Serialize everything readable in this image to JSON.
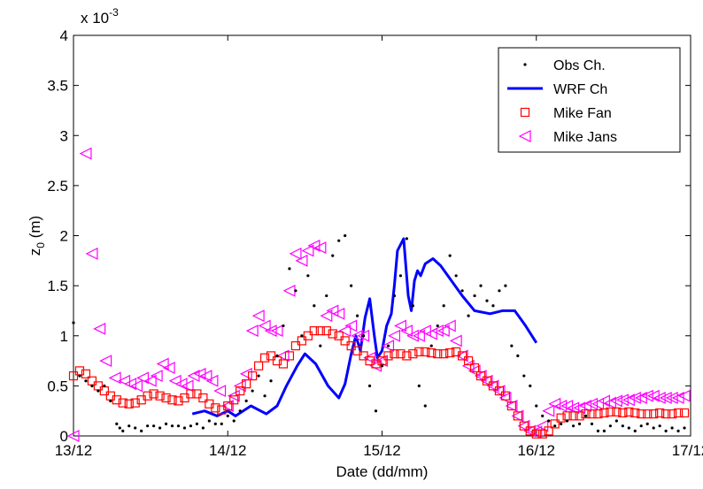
{
  "chart_data": {
    "type": "scatter",
    "title": "",
    "xlabel": "Date (dd/mm)",
    "ylabel": "z",
    "ylabel_subscript": "0",
    "ylabel_suffix": " (m)",
    "y_multiplier_label": "x 10",
    "y_multiplier_exponent": "-3",
    "x_ticks": [
      "13/12",
      "14/12",
      "15/12",
      "16/12",
      "17/12"
    ],
    "y_ticks": [
      "0",
      "0.5",
      "1",
      "1.5",
      "2",
      "2.5",
      "3",
      "3.5",
      "4"
    ],
    "xlim": [
      0,
      4
    ],
    "ylim": [
      0,
      4
    ],
    "legend_position": "top-right",
    "grid": false,
    "series": [
      {
        "name": "Obs Ch.",
        "style": "dots",
        "color": "#000000",
        "x": [
          0.0,
          0.04,
          0.08,
          0.12,
          0.16,
          0.2,
          0.24,
          0.28,
          0.3,
          0.32,
          0.36,
          0.4,
          0.44,
          0.48,
          0.52,
          0.56,
          0.6,
          0.64,
          0.68,
          0.72,
          0.76,
          0.8,
          0.84,
          0.88,
          0.92,
          0.96,
          1.0,
          1.04,
          1.08,
          1.12,
          1.16,
          1.2,
          1.24,
          1.28,
          1.32,
          1.36,
          1.4,
          1.44,
          1.48,
          1.52,
          1.56,
          1.6,
          1.64,
          1.68,
          1.72,
          1.76,
          1.8,
          1.84,
          1.88,
          1.92,
          1.96,
          2.0,
          2.04,
          2.08,
          2.12,
          2.16,
          2.2,
          2.24,
          2.28,
          2.32,
          2.36,
          2.4,
          2.44,
          2.48,
          2.52,
          2.56,
          2.6,
          2.64,
          2.68,
          2.72,
          2.76,
          2.8,
          2.84,
          2.88,
          2.92,
          2.96,
          3.0,
          3.04,
          3.08,
          3.12,
          3.16,
          3.2,
          3.24,
          3.28,
          3.32,
          3.36,
          3.4,
          3.44,
          3.48,
          3.52,
          3.56,
          3.6,
          3.64,
          3.68,
          3.72,
          3.76,
          3.8,
          3.84,
          3.88,
          3.92,
          3.96
        ],
        "y": [
          1.13,
          0.6,
          0.55,
          0.5,
          0.45,
          0.5,
          0.35,
          0.12,
          0.08,
          0.05,
          0.1,
          0.08,
          0.05,
          0.1,
          0.1,
          0.08,
          0.12,
          0.1,
          0.1,
          0.08,
          0.1,
          0.12,
          0.08,
          0.15,
          0.12,
          0.12,
          0.2,
          0.15,
          0.25,
          0.35,
          0.45,
          0.6,
          0.4,
          0.55,
          0.8,
          1.1,
          1.67,
          1.45,
          1.0,
          1.6,
          1.3,
          0.9,
          1.4,
          1.8,
          1.95,
          2.0,
          1.5,
          1.2,
          1.0,
          0.5,
          0.25,
          0.7,
          0.9,
          1.4,
          1.6,
          1.97,
          1.3,
          0.5,
          0.3,
          0.9,
          1.1,
          1.3,
          1.8,
          1.6,
          1.45,
          1.2,
          1.4,
          1.5,
          1.35,
          1.3,
          1.45,
          1.5,
          0.9,
          0.8,
          0.6,
          0.5,
          0.3,
          0.2,
          0.15,
          0.1,
          0.12,
          0.15,
          0.1,
          0.12,
          0.2,
          0.12,
          0.05,
          0.05,
          0.1,
          0.15,
          0.1,
          0.08,
          0.05,
          0.1,
          0.12,
          0.08,
          0.1,
          0.05,
          0.08,
          0.05,
          0.08
        ]
      },
      {
        "name": "WRF Ch",
        "style": "line",
        "color": "#0000ff",
        "x": [
          0.77,
          0.85,
          0.93,
          1.0,
          1.05,
          1.15,
          1.25,
          1.32,
          1.38,
          1.45,
          1.5,
          1.57,
          1.65,
          1.72,
          1.76,
          1.8,
          1.83,
          1.86,
          1.89,
          1.92,
          1.95,
          1.97,
          2.0,
          2.03,
          2.06,
          2.08,
          2.1,
          2.14,
          2.17,
          2.19,
          2.21,
          2.23,
          2.25,
          2.28,
          2.33,
          2.38,
          2.45,
          2.52,
          2.6,
          2.7,
          2.78,
          2.86,
          2.93,
          3.0
        ],
        "y": [
          0.22,
          0.25,
          0.2,
          0.25,
          0.2,
          0.3,
          0.22,
          0.3,
          0.5,
          0.7,
          0.82,
          0.72,
          0.5,
          0.38,
          0.52,
          0.82,
          1.0,
          0.85,
          1.18,
          1.37,
          1.0,
          0.78,
          0.85,
          1.1,
          1.22,
          1.5,
          1.85,
          1.97,
          1.4,
          1.25,
          1.55,
          1.65,
          1.6,
          1.72,
          1.77,
          1.7,
          1.55,
          1.4,
          1.25,
          1.22,
          1.25,
          1.25,
          1.1,
          0.93
        ]
      },
      {
        "name": "Mike Fan",
        "style": "squares",
        "color": "#ff0000",
        "x": [
          0.0,
          0.04,
          0.08,
          0.12,
          0.16,
          0.2,
          0.24,
          0.28,
          0.32,
          0.36,
          0.4,
          0.44,
          0.48,
          0.52,
          0.56,
          0.6,
          0.64,
          0.68,
          0.72,
          0.76,
          0.8,
          0.84,
          0.88,
          0.92,
          0.96,
          1.0,
          1.04,
          1.08,
          1.12,
          1.16,
          1.2,
          1.24,
          1.28,
          1.32,
          1.36,
          1.4,
          1.44,
          1.48,
          1.52,
          1.56,
          1.6,
          1.64,
          1.68,
          1.72,
          1.76,
          1.8,
          1.84,
          1.88,
          1.92,
          1.96,
          2.0,
          2.04,
          2.08,
          2.12,
          2.16,
          2.2,
          2.24,
          2.28,
          2.32,
          2.36,
          2.4,
          2.44,
          2.48,
          2.52,
          2.56,
          2.6,
          2.64,
          2.68,
          2.72,
          2.76,
          2.8,
          2.84,
          2.88,
          2.92,
          2.96,
          3.0,
          3.04,
          3.08,
          3.12,
          3.16,
          3.2,
          3.24,
          3.28,
          3.32,
          3.36,
          3.4,
          3.44,
          3.48,
          3.52,
          3.56,
          3.6,
          3.64,
          3.68,
          3.72,
          3.76,
          3.8,
          3.84,
          3.88,
          3.92,
          3.96
        ],
        "y": [
          0.6,
          0.65,
          0.62,
          0.55,
          0.5,
          0.45,
          0.4,
          0.36,
          0.33,
          0.32,
          0.33,
          0.36,
          0.4,
          0.42,
          0.4,
          0.38,
          0.36,
          0.35,
          0.38,
          0.42,
          0.42,
          0.38,
          0.32,
          0.28,
          0.26,
          0.3,
          0.36,
          0.45,
          0.52,
          0.6,
          0.7,
          0.78,
          0.8,
          0.75,
          0.72,
          0.8,
          0.9,
          0.95,
          1.0,
          1.05,
          1.05,
          1.05,
          1.02,
          1.0,
          0.95,
          0.9,
          0.85,
          0.8,
          0.75,
          0.72,
          0.75,
          0.8,
          0.82,
          0.82,
          0.8,
          0.82,
          0.84,
          0.84,
          0.83,
          0.82,
          0.82,
          0.83,
          0.84,
          0.8,
          0.75,
          0.68,
          0.6,
          0.55,
          0.5,
          0.45,
          0.4,
          0.3,
          0.2,
          0.1,
          0.05,
          0.02,
          0.02,
          0.05,
          0.12,
          0.18,
          0.2,
          0.2,
          0.2,
          0.22,
          0.22,
          0.22,
          0.23,
          0.24,
          0.24,
          0.23,
          0.24,
          0.23,
          0.22,
          0.22,
          0.22,
          0.23,
          0.22,
          0.22,
          0.23,
          0.23
        ]
      },
      {
        "name": "Mike Jans",
        "style": "triangles",
        "color": "#ff00ff",
        "x": [
          0.0,
          0.08,
          0.12,
          0.17,
          0.21,
          0.27,
          0.33,
          0.37,
          0.41,
          0.45,
          0.5,
          0.54,
          0.58,
          0.62,
          0.66,
          0.7,
          0.74,
          0.78,
          0.82,
          0.86,
          0.9,
          0.95,
          1.0,
          1.04,
          1.08,
          1.12,
          1.16,
          1.2,
          1.24,
          1.28,
          1.32,
          1.36,
          1.4,
          1.44,
          1.48,
          1.52,
          1.56,
          1.6,
          1.64,
          1.68,
          1.72,
          1.76,
          1.8,
          1.84,
          1.88,
          1.92,
          1.96,
          2.0,
          2.04,
          2.08,
          2.12,
          2.16,
          2.2,
          2.24,
          2.28,
          2.32,
          2.36,
          2.4,
          2.44,
          2.48,
          2.52,
          2.56,
          2.6,
          2.64,
          2.68,
          2.72,
          2.76,
          2.8,
          2.84,
          2.88,
          2.92,
          2.96,
          3.0,
          3.04,
          3.08,
          3.12,
          3.16,
          3.2,
          3.24,
          3.28,
          3.32,
          3.36,
          3.4,
          3.44,
          3.48,
          3.52,
          3.56,
          3.6,
          3.64,
          3.68,
          3.72,
          3.76,
          3.8,
          3.84,
          3.88,
          3.92,
          3.96
        ],
        "y": [
          0.0,
          2.82,
          1.82,
          1.07,
          0.75,
          0.58,
          0.55,
          0.52,
          0.5,
          0.58,
          0.55,
          0.6,
          0.72,
          0.68,
          0.55,
          0.52,
          0.5,
          0.6,
          0.62,
          0.6,
          0.55,
          0.45,
          0.3,
          0.4,
          0.5,
          0.62,
          1.05,
          1.2,
          1.1,
          1.05,
          1.05,
          0.8,
          1.45,
          1.82,
          1.75,
          1.85,
          1.9,
          1.88,
          1.2,
          1.25,
          1.22,
          1.05,
          1.1,
          1.0,
          1.0,
          0.78,
          0.7,
          0.75,
          0.9,
          1.0,
          1.1,
          1.05,
          1.0,
          1.0,
          1.05,
          1.02,
          1.05,
          1.05,
          1.1,
          0.95,
          0.8,
          0.7,
          0.65,
          0.6,
          0.55,
          0.5,
          0.45,
          0.38,
          0.3,
          0.2,
          0.1,
          0.05,
          0.04,
          0.1,
          0.25,
          0.32,
          0.3,
          0.3,
          0.28,
          0.28,
          0.3,
          0.32,
          0.32,
          0.35,
          0.33,
          0.35,
          0.36,
          0.36,
          0.38,
          0.38,
          0.4,
          0.4,
          0.38,
          0.38,
          0.38,
          0.38,
          0.4
        ]
      }
    ]
  }
}
